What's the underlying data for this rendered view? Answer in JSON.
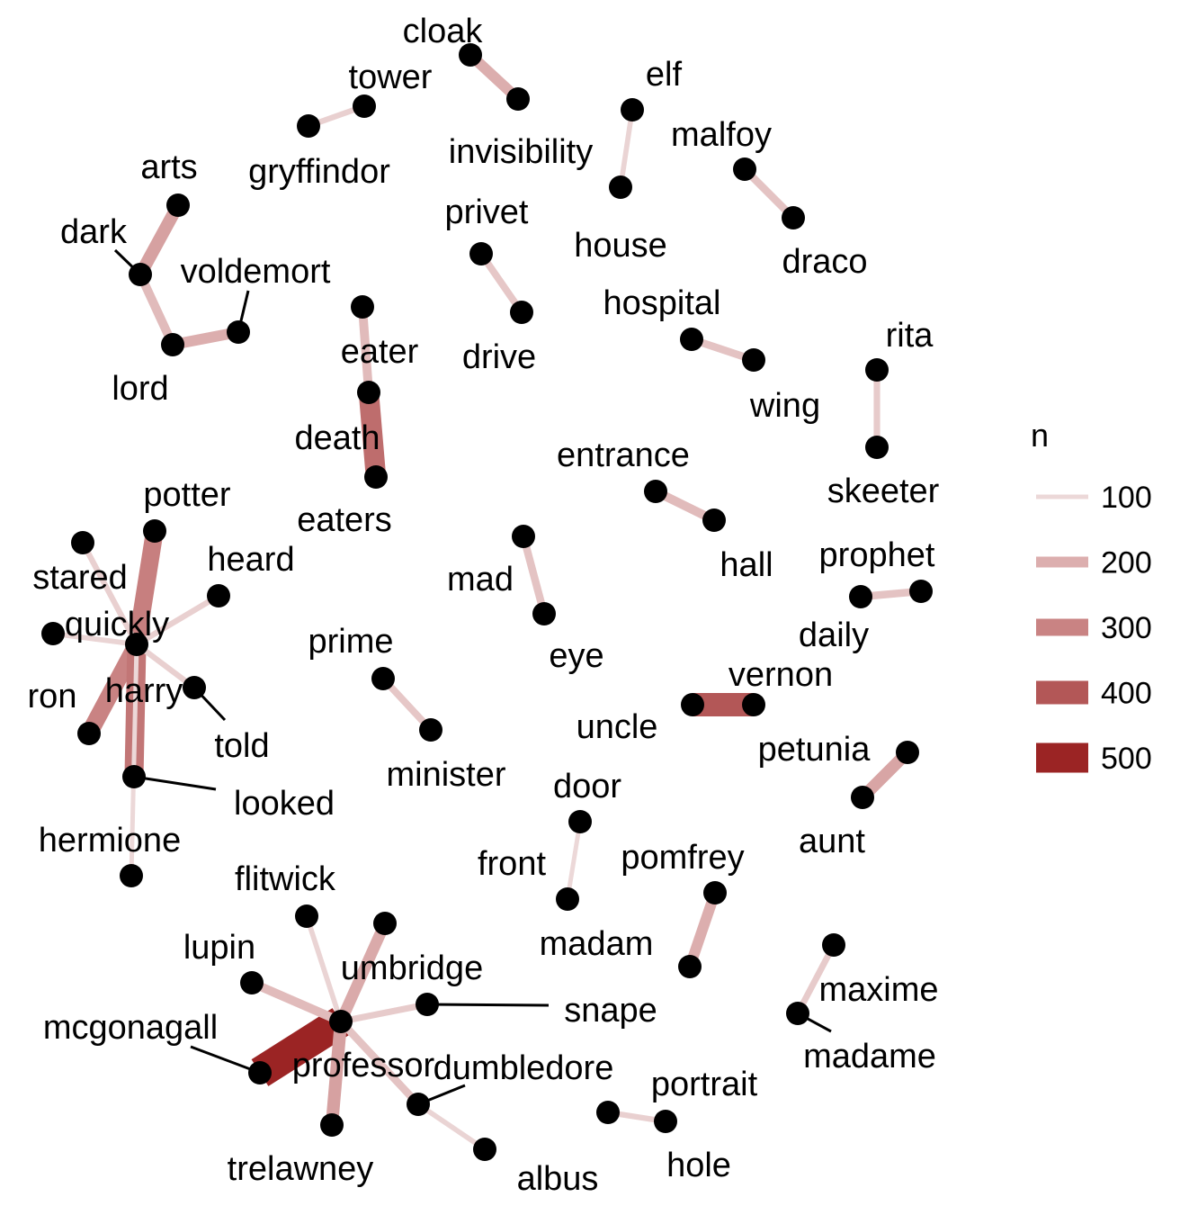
{
  "chart_data": {
    "type": "network",
    "legend": {
      "title": "n",
      "placement": "right",
      "items": [
        {
          "label": "100",
          "value": 100,
          "color": "#ecd8d8"
        },
        {
          "label": "200",
          "value": 200,
          "color": "#dcaeae"
        },
        {
          "label": "300",
          "value": 300,
          "color": "#c98383"
        },
        {
          "label": "400",
          "value": 400,
          "color": "#b35757"
        },
        {
          "label": "500",
          "value": 500,
          "color": "#9b2424"
        }
      ]
    },
    "nodes": [
      {
        "id": "cloak",
        "label": "cloak"
      },
      {
        "id": "invisibility",
        "label": "invisibility"
      },
      {
        "id": "tower",
        "label": "tower"
      },
      {
        "id": "gryffindor",
        "label": "gryffindor"
      },
      {
        "id": "elf",
        "label": "elf"
      },
      {
        "id": "house",
        "label": "house"
      },
      {
        "id": "malfoy",
        "label": "malfoy"
      },
      {
        "id": "draco",
        "label": "draco"
      },
      {
        "id": "arts",
        "label": "arts"
      },
      {
        "id": "dark",
        "label": "dark"
      },
      {
        "id": "voldemort",
        "label": "voldemort"
      },
      {
        "id": "lord",
        "label": "lord"
      },
      {
        "id": "privet",
        "label": "privet"
      },
      {
        "id": "drive",
        "label": "drive"
      },
      {
        "id": "hospital",
        "label": "hospital"
      },
      {
        "id": "wing",
        "label": "wing"
      },
      {
        "id": "rita",
        "label": "rita"
      },
      {
        "id": "skeeter",
        "label": "skeeter"
      },
      {
        "id": "eater",
        "label": "eater"
      },
      {
        "id": "death",
        "label": "death"
      },
      {
        "id": "eaters",
        "label": "eaters"
      },
      {
        "id": "entrance",
        "label": "entrance"
      },
      {
        "id": "hall",
        "label": "hall"
      },
      {
        "id": "potter",
        "label": "potter"
      },
      {
        "id": "stared",
        "label": "stared"
      },
      {
        "id": "heard",
        "label": "heard"
      },
      {
        "id": "quickly",
        "label": "quickly"
      },
      {
        "id": "harry",
        "label": "harry"
      },
      {
        "id": "ron",
        "label": "ron"
      },
      {
        "id": "told",
        "label": "told"
      },
      {
        "id": "looked",
        "label": "looked"
      },
      {
        "id": "hermione",
        "label": "hermione"
      },
      {
        "id": "mad",
        "label": "mad"
      },
      {
        "id": "eye",
        "label": "eye"
      },
      {
        "id": "prophet",
        "label": "prophet"
      },
      {
        "id": "daily",
        "label": "daily"
      },
      {
        "id": "prime",
        "label": "prime"
      },
      {
        "id": "minister",
        "label": "minister"
      },
      {
        "id": "uncle",
        "label": "uncle"
      },
      {
        "id": "vernon",
        "label": "vernon"
      },
      {
        "id": "petunia",
        "label": "petunia"
      },
      {
        "id": "aunt",
        "label": "aunt"
      },
      {
        "id": "door",
        "label": "door"
      },
      {
        "id": "front",
        "label": "front"
      },
      {
        "id": "pomfrey",
        "label": "pomfrey"
      },
      {
        "id": "madam",
        "label": "madam"
      },
      {
        "id": "flitwick",
        "label": "flitwick"
      },
      {
        "id": "lupin",
        "label": "lupin"
      },
      {
        "id": "umbridge",
        "label": "umbridge"
      },
      {
        "id": "snape",
        "label": "snape"
      },
      {
        "id": "mcgonagall",
        "label": "mcgonagall"
      },
      {
        "id": "professor",
        "label": "professor"
      },
      {
        "id": "dumbledore",
        "label": "dumbledore"
      },
      {
        "id": "trelawney",
        "label": "trelawney"
      },
      {
        "id": "albus",
        "label": "albus"
      },
      {
        "id": "portrait",
        "label": "portrait"
      },
      {
        "id": "hole",
        "label": "hole"
      },
      {
        "id": "maxime",
        "label": "maxime"
      },
      {
        "id": "madame",
        "label": "madame"
      }
    ],
    "edges": [
      {
        "from": "invisibility",
        "to": "cloak",
        "n": 200
      },
      {
        "from": "gryffindor",
        "to": "tower",
        "n": 120
      },
      {
        "from": "house",
        "to": "elf",
        "n": 110
      },
      {
        "from": "draco",
        "to": "malfoy",
        "n": 150
      },
      {
        "from": "dark",
        "to": "arts",
        "n": 230
      },
      {
        "from": "lord",
        "to": "voldemort",
        "n": 200
      },
      {
        "from": "dark",
        "to": "lord",
        "n": 170
      },
      {
        "from": "privet",
        "to": "drive",
        "n": 140
      },
      {
        "from": "hospital",
        "to": "wing",
        "n": 150
      },
      {
        "from": "rita",
        "to": "skeeter",
        "n": 130
      },
      {
        "from": "death",
        "to": "eater",
        "n": 170
      },
      {
        "from": "death",
        "to": "eaters",
        "n": 350
      },
      {
        "from": "entrance",
        "to": "hall",
        "n": 170
      },
      {
        "from": "mad",
        "to": "eye",
        "n": 150
      },
      {
        "from": "daily",
        "to": "prophet",
        "n": 150
      },
      {
        "from": "prime",
        "to": "minister",
        "n": 140
      },
      {
        "from": "uncle",
        "to": "vernon",
        "n": 400
      },
      {
        "from": "aunt",
        "to": "petunia",
        "n": 220
      },
      {
        "from": "front",
        "to": "door",
        "n": 100
      },
      {
        "from": "madam",
        "to": "pomfrey",
        "n": 200
      },
      {
        "from": "portrait",
        "to": "hole",
        "n": 120
      },
      {
        "from": "madame",
        "to": "maxime",
        "n": 130
      },
      {
        "from": "harry",
        "to": "potter",
        "n": 310
      },
      {
        "from": "harry",
        "to": "ron",
        "n": 300
      },
      {
        "from": "harry",
        "to": "looked",
        "n": 330
      },
      {
        "from": "harry",
        "to": "stared",
        "n": 120
      },
      {
        "from": "harry",
        "to": "heard",
        "n": 120
      },
      {
        "from": "harry",
        "to": "quickly",
        "n": 110
      },
      {
        "from": "harry",
        "to": "told",
        "n": 120
      },
      {
        "from": "harry",
        "to": "hermione",
        "n": 100
      },
      {
        "from": "professor",
        "to": "mcgonagall",
        "n": 530
      },
      {
        "from": "professor",
        "to": "trelawney",
        "n": 230
      },
      {
        "from": "professor",
        "to": "umbridge",
        "n": 210
      },
      {
        "from": "professor",
        "to": "lupin",
        "n": 170
      },
      {
        "from": "professor",
        "to": "dumbledore",
        "n": 150
      },
      {
        "from": "professor",
        "to": "snape",
        "n": 130
      },
      {
        "from": "professor",
        "to": "flitwick",
        "n": 110
      },
      {
        "from": "dumbledore",
        "to": "albus",
        "n": 110
      }
    ]
  }
}
